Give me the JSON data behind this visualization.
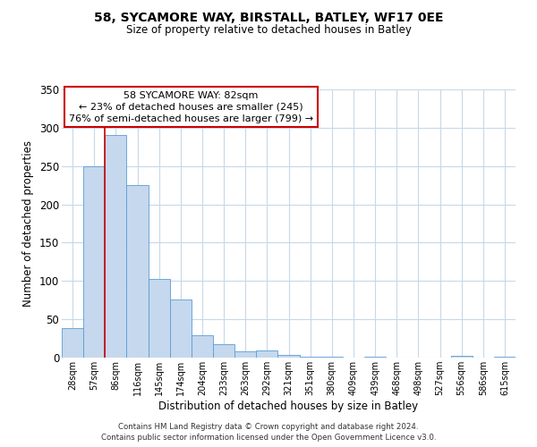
{
  "title": "58, SYCAMORE WAY, BIRSTALL, BATLEY, WF17 0EE",
  "subtitle": "Size of property relative to detached houses in Batley",
  "xlabel": "Distribution of detached houses by size in Batley",
  "ylabel": "Number of detached properties",
  "bar_values": [
    39,
    250,
    291,
    225,
    103,
    76,
    29,
    18,
    8,
    9,
    4,
    1,
    1,
    0,
    1,
    0,
    0,
    0,
    2,
    0,
    1
  ],
  "bar_labels": [
    "28sqm",
    "57sqm",
    "86sqm",
    "116sqm",
    "145sqm",
    "174sqm",
    "204sqm",
    "233sqm",
    "263sqm",
    "292sqm",
    "321sqm",
    "351sqm",
    "380sqm",
    "409sqm",
    "439sqm",
    "468sqm",
    "498sqm",
    "527sqm",
    "556sqm",
    "586sqm",
    "615sqm"
  ],
  "ylim": [
    0,
    350
  ],
  "yticks": [
    0,
    50,
    100,
    150,
    200,
    250,
    300,
    350
  ],
  "bar_color": "#c5d8ed",
  "bar_edge_color": "#5b9bd5",
  "vline_color": "#cc0000",
  "annotation_title": "58 SYCAMORE WAY: 82sqm",
  "annotation_line1": "← 23% of detached houses are smaller (245)",
  "annotation_line2": "76% of semi-detached houses are larger (799) →",
  "annotation_box_color": "#ffffff",
  "annotation_box_edge": "#cc0000",
  "footer1": "Contains HM Land Registry data © Crown copyright and database right 2024.",
  "footer2": "Contains public sector information licensed under the Open Government Licence v3.0.",
  "background_color": "#ffffff",
  "grid_color": "#c8d8e8"
}
